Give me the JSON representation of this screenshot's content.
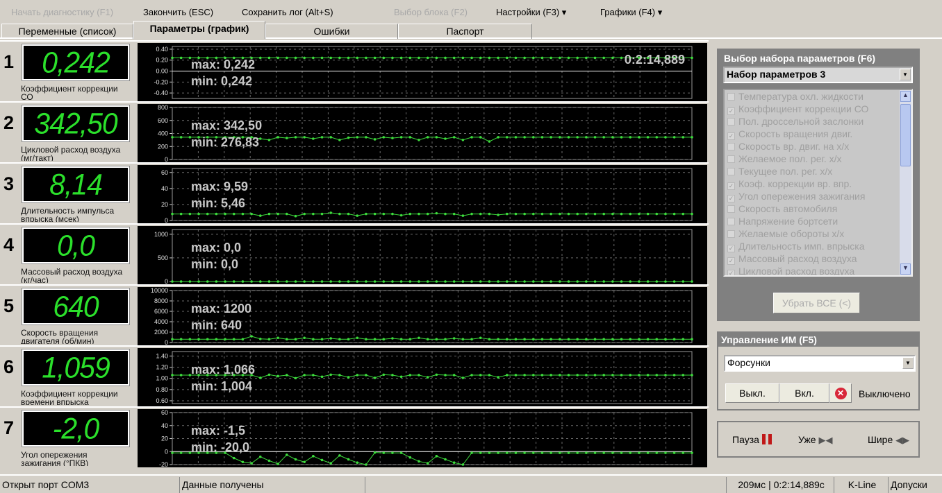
{
  "menu": {
    "start": "Начать диагностику (F1)",
    "finish": "Закончить (ESC)",
    "save_log": "Сохранить лог (Alt+S)",
    "select_block": "Выбор блока (F2)",
    "settings": "Настройки (F3) ▾",
    "charts": "Графики (F4) ▾"
  },
  "tabs": [
    "Переменные (список)",
    "Параметры (график)",
    "Ошибки",
    "Паспорт"
  ],
  "active_tab": 1,
  "timestamp": "0:2:14,889",
  "colors": {
    "digit": "#2be02b",
    "series": "#3ddc3d",
    "panel": "#808080",
    "background": "#d4d0c8"
  },
  "rows": [
    {
      "num": "1",
      "value": "0,242",
      "label": "Коэффициент коррекции СО",
      "max": "max: 0,242",
      "min": "min: 0,242"
    },
    {
      "num": "2",
      "value": "342,50",
      "label": "Цикловой расход воздуха (мг/такт)",
      "max": "max: 342,50",
      "min": "min: 276,83"
    },
    {
      "num": "3",
      "value": "8,14",
      "label": "Длительность импульса впрыска (мсек)",
      "max": "max: 9,59",
      "min": "min: 5,46"
    },
    {
      "num": "4",
      "value": "0,0",
      "label": "Массовый расход воздуха (кг/час)",
      "max": "max: 0,0",
      "min": "min: 0,0"
    },
    {
      "num": "5",
      "value": "640",
      "label": "Скорость вращения двигателя (об/мин)",
      "max": "max: 1200",
      "min": "min: 640"
    },
    {
      "num": "6",
      "value": "1,059",
      "label": "Коэффициент коррекции времени впрыска",
      "max": "max: 1,066",
      "min": "min: 1,004"
    },
    {
      "num": "7",
      "value": "-2,0",
      "label": "Угол опережения зажигания (°ПКВ)",
      "max": "max: -1,5",
      "min": "min: -20,0"
    }
  ],
  "chart_data": [
    {
      "type": "line",
      "ylim": [
        -0.5,
        0.45
      ],
      "yticks": [
        "0.40",
        "0.20",
        "0.00",
        "-0.20",
        "-0.40"
      ],
      "ytick_values": [
        0.4,
        0.2,
        0,
        -0.2,
        -0.4
      ],
      "zero_line": true,
      "values": [
        0.242,
        0.242,
        0.242,
        0.242,
        0.242,
        0.242,
        0.242,
        0.242,
        0.242,
        0.242,
        0.242,
        0.242,
        0.242,
        0.242,
        0.242,
        0.242,
        0.242,
        0.242,
        0.242,
        0.242,
        0.242,
        0.242,
        0.242,
        0.242,
        0.242,
        0.242,
        0.242,
        0.242,
        0.242,
        0.242,
        0.242,
        0.242,
        0.242,
        0.242,
        0.242,
        0.242,
        0.242,
        0.242,
        0.242,
        0.242,
        0.242,
        0.242,
        0.242,
        0.242,
        0.242,
        0.242,
        0.242,
        0.242,
        0.242,
        0.242,
        0.242,
        0.242,
        0.242,
        0.242,
        0.242,
        0.242,
        0.242,
        0.242,
        0.242,
        0.242
      ]
    },
    {
      "type": "line",
      "ylim": [
        0,
        800
      ],
      "yticks": [
        "800",
        "600",
        "400",
        "200",
        "0"
      ],
      "ytick_values": [
        800,
        600,
        400,
        200,
        0
      ],
      "zero_line": false,
      "values": [
        342.5,
        342.5,
        342.5,
        342.5,
        342.5,
        342.5,
        342.5,
        342.5,
        342.5,
        342.5,
        320,
        300,
        342.5,
        330,
        342.5,
        342.5,
        320,
        342.5,
        342.5,
        300,
        335,
        342.5,
        342.5,
        310,
        342.5,
        330,
        342.5,
        342.5,
        300,
        342.5,
        342.5,
        320,
        342.5,
        300,
        342.5,
        342.5,
        276.83,
        342.5,
        342.5,
        342.5,
        342.5,
        342.5,
        342.5,
        342.5,
        342.5,
        342.5,
        342.5,
        342.5,
        342.5,
        342.5,
        342.5,
        342.5,
        342.5,
        342.5,
        342.5,
        342.5,
        342.5,
        342.5,
        342.5,
        342.5
      ]
    },
    {
      "type": "line",
      "ylim": [
        0,
        65
      ],
      "yticks": [
        "60",
        "40",
        "20",
        "0"
      ],
      "ytick_values": [
        60,
        40,
        20,
        0
      ],
      "zero_line": false,
      "values": [
        8.14,
        8.14,
        8.14,
        8.14,
        8.14,
        8.14,
        8.14,
        8.14,
        8.14,
        8.14,
        6,
        8.14,
        8.14,
        8.14,
        5.46,
        8.14,
        8.14,
        8.14,
        9.59,
        8.14,
        8.14,
        6,
        8.14,
        8.14,
        8.14,
        8.14,
        6.5,
        8.14,
        8.14,
        8.14,
        9,
        8.14,
        8.14,
        6,
        8.14,
        8.14,
        8.14,
        7,
        8.14,
        8.14,
        8.14,
        8.14,
        8.14,
        8.14,
        8.14,
        8.14,
        8.14,
        8.14,
        8.14,
        8.14,
        8.14,
        8.14,
        8.14,
        8.14,
        8.14,
        8.14,
        8.14,
        8.14,
        8.14,
        8.14
      ]
    },
    {
      "type": "line",
      "ylim": [
        0,
        1100
      ],
      "yticks": [
        "1000",
        "500",
        "0"
      ],
      "ytick_values": [
        1000,
        500,
        0
      ],
      "zero_line": false,
      "values": [
        0,
        0,
        0,
        0,
        0,
        0,
        0,
        0,
        0,
        0,
        0,
        0,
        0,
        0,
        0,
        0,
        0,
        0,
        0,
        0,
        0,
        0,
        0,
        0,
        0,
        0,
        0,
        0,
        0,
        0,
        0,
        0,
        0,
        0,
        0,
        0,
        0,
        0,
        0,
        0,
        0,
        0,
        0,
        0,
        0,
        0,
        0,
        0,
        0,
        0,
        0,
        0,
        0,
        0,
        0,
        0,
        0,
        0,
        0,
        0
      ]
    },
    {
      "type": "line",
      "ylim": [
        0,
        10000
      ],
      "yticks": [
        "10000",
        "8000",
        "6000",
        "4000",
        "2000",
        "0"
      ],
      "ytick_values": [
        10000,
        8000,
        6000,
        4000,
        2000,
        0
      ],
      "zero_line": false,
      "values": [
        640,
        640,
        640,
        640,
        640,
        640,
        640,
        640,
        640,
        1200,
        700,
        640,
        900,
        640,
        640,
        900,
        640,
        640,
        800,
        640,
        640,
        900,
        640,
        640,
        640,
        800,
        640,
        640,
        900,
        640,
        640,
        640,
        800,
        640,
        640,
        900,
        640,
        640,
        640,
        640,
        640,
        640,
        640,
        640,
        640,
        640,
        640,
        640,
        640,
        640,
        640,
        640,
        640,
        640,
        640,
        640,
        640,
        640,
        640,
        640
      ]
    },
    {
      "type": "line",
      "ylim": [
        0.55,
        1.48
      ],
      "yticks": [
        "1.40",
        "1.20",
        "1.00",
        "0.80",
        "0.60"
      ],
      "ytick_values": [
        1.4,
        1.2,
        1.0,
        0.8,
        0.6
      ],
      "zero_line": false,
      "values": [
        1.059,
        1.059,
        1.059,
        1.059,
        1.059,
        1.059,
        1.059,
        1.059,
        1.059,
        1.059,
        1.01,
        1.066,
        1.04,
        1.059,
        1.004,
        1.059,
        1.059,
        1.03,
        1.066,
        1.059,
        1.02,
        1.059,
        1.059,
        1.01,
        1.066,
        1.059,
        1.03,
        1.059,
        1.059,
        1.02,
        1.066,
        1.059,
        1.059,
        1.01,
        1.059,
        1.059,
        1.059,
        1.02,
        1.059,
        1.059,
        1.059,
        1.059,
        1.059,
        1.059,
        1.059,
        1.059,
        1.059,
        1.059,
        1.059,
        1.059,
        1.059,
        1.059,
        1.059,
        1.059,
        1.059,
        1.059,
        1.059,
        1.059,
        1.059,
        1.059
      ]
    },
    {
      "type": "line",
      "ylim": [
        -20,
        60
      ],
      "yticks": [
        "60",
        "40",
        "20",
        "0",
        "-20"
      ],
      "ytick_values": [
        60,
        40,
        20,
        0,
        -20
      ],
      "zero_line": true,
      "values": [
        -2,
        -2,
        -2,
        -2,
        -2,
        -2,
        -2,
        -10,
        -16,
        -18,
        -8,
        -14,
        -19,
        -5,
        -12,
        -16,
        -7,
        -13,
        -18,
        -6,
        -12,
        -17,
        -20,
        -1.5,
        -2,
        -2,
        -2,
        -9,
        -15,
        -18,
        -7,
        -12,
        -17,
        -20,
        -2,
        -2,
        -2,
        -2,
        -2,
        -2,
        -2,
        -2,
        -2,
        -2,
        -2,
        -2,
        -2,
        -2,
        -2,
        -2,
        -2,
        -2,
        -2,
        -2,
        -2,
        -2,
        -2,
        -2,
        -2,
        -2
      ]
    }
  ],
  "param_set": {
    "title": "Выбор набора параметров (F6)",
    "selected": "Набор параметров 3",
    "items": [
      {
        "label": "Температура охл. жидкости",
        "checked": false
      },
      {
        "label": "Коэффициент коррекции СО",
        "checked": true
      },
      {
        "label": "Пол. дроссельной заслонки",
        "checked": false
      },
      {
        "label": "Скорость вращения двиг.",
        "checked": true
      },
      {
        "label": "Скорость вр. двиг. на х/х",
        "checked": false
      },
      {
        "label": "Желаемое пол. рег. х/х",
        "checked": false
      },
      {
        "label": "Текущее пол. рег. х/х",
        "checked": false
      },
      {
        "label": "Коэф. коррекции вр. впр.",
        "checked": true
      },
      {
        "label": "Угол опережения зажигания",
        "checked": true
      },
      {
        "label": "Скорость автомобиля",
        "checked": false
      },
      {
        "label": "Напряжение бортсети",
        "checked": false
      },
      {
        "label": "Желаемые обороты х/х",
        "checked": false
      },
      {
        "label": "Длительность имп. впрыска",
        "checked": true
      },
      {
        "label": "Массовый расход воздуха",
        "checked": true
      },
      {
        "label": "Цикловой расход воздуха",
        "checked": true
      }
    ],
    "remove_all": "Убрать ВСЕ (<)"
  },
  "actuator": {
    "title": "Управление ИМ (F5)",
    "selected": "Форсунки",
    "off_btn": "Выкл.",
    "on_btn": "Вкл.",
    "state": "Выключено"
  },
  "playback": {
    "pause": "Пауза",
    "narrower": "Уже",
    "wider": "Шире"
  },
  "status": {
    "port": "Открыт порт COM3",
    "data": "Данные получены",
    "timing": "209мс | 0:2:14,889с",
    "protocol": "K-Line",
    "tolerances": "Допуски"
  }
}
